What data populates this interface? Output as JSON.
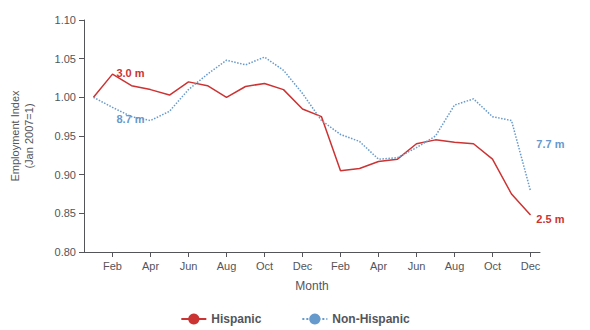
{
  "chart_data": {
    "type": "line",
    "xlabel": "Month",
    "ylabel": "Employment Index\n(Jan 2007=1)",
    "categories": [
      null,
      "Feb",
      null,
      "Apr",
      null,
      "Jun",
      null,
      "Aug",
      null,
      "Oct",
      null,
      "Dec",
      null,
      "Feb",
      null,
      "Apr",
      null,
      "Jun",
      null,
      "Aug",
      null,
      "Oct",
      null,
      "Dec"
    ],
    "series": [
      {
        "name": "Hispanic",
        "color": "#CC3333",
        "line_style": "solid",
        "values": [
          1.0,
          1.03,
          1.015,
          1.01,
          1.003,
          1.02,
          1.015,
          1.0,
          1.014,
          1.018,
          1.01,
          0.985,
          0.975,
          0.905,
          0.908,
          0.917,
          0.92,
          0.94,
          0.945,
          0.942,
          0.94,
          0.92,
          0.875,
          0.848
        ]
      },
      {
        "name": "Non-Hispanic",
        "color": "#6699CC",
        "line_style": "dotted",
        "values": [
          1.0,
          0.987,
          0.975,
          0.97,
          0.982,
          1.01,
          1.03,
          1.048,
          1.042,
          1.052,
          1.035,
          1.005,
          0.97,
          0.952,
          0.943,
          0.92,
          0.922,
          0.935,
          0.95,
          0.99,
          0.998,
          0.975,
          0.97,
          0.879
        ]
      }
    ],
    "ylim": [
      0.8,
      1.1
    ],
    "yticks": [
      {
        "value": 0.8,
        "label": "0.80"
      },
      {
        "value": 0.85,
        "label": "0.85"
      },
      {
        "value": 0.9,
        "label": "0.90"
      },
      {
        "value": 0.95,
        "label": "0.95"
      },
      {
        "value": 1.0,
        "label": "1.00"
      },
      {
        "value": 1.05,
        "label": "1.05"
      },
      {
        "value": 1.1,
        "label": "1.10"
      }
    ],
    "annotations": [
      {
        "text": "3.0 m",
        "x": 1.1,
        "y": 1.031,
        "color": "#CC3333"
      },
      {
        "text": "8.7 m",
        "x": 1.1,
        "y": 0.972,
        "color": "#6699CC"
      },
      {
        "text": "2.5 m",
        "x": 23.2,
        "y": 0.843,
        "color": "#CC3333"
      },
      {
        "text": "7.7 m",
        "x": 23.2,
        "y": 0.94,
        "color": "#6699CC"
      }
    ],
    "grid": false,
    "legend": "bottom"
  }
}
